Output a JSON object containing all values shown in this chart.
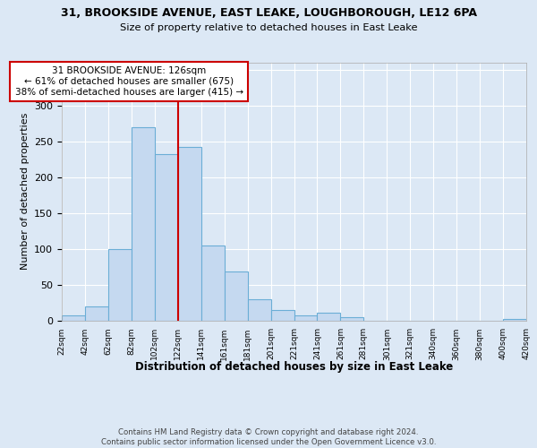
{
  "title": "31, BROOKSIDE AVENUE, EAST LEAKE, LOUGHBOROUGH, LE12 6PA",
  "subtitle": "Size of property relative to detached houses in East Leake",
  "xlabel": "Distribution of detached houses by size in East Leake",
  "ylabel": "Number of detached properties",
  "footer_line1": "Contains HM Land Registry data © Crown copyright and database right 2024.",
  "footer_line2": "Contains public sector information licensed under the Open Government Licence v3.0.",
  "bins": [
    "22sqm",
    "42sqm",
    "62sqm",
    "82sqm",
    "102sqm",
    "122sqm",
    "141sqm",
    "161sqm",
    "181sqm",
    "201sqm",
    "221sqm",
    "241sqm",
    "261sqm",
    "281sqm",
    "301sqm",
    "321sqm",
    "340sqm",
    "360sqm",
    "380sqm",
    "400sqm",
    "420sqm"
  ],
  "bar_values": [
    7,
    20,
    100,
    270,
    232,
    242,
    105,
    68,
    29,
    15,
    7,
    11,
    5,
    0,
    0,
    0,
    0,
    0,
    0,
    2
  ],
  "bar_color": "#c5d9f0",
  "bar_edge_color": "#6baed6",
  "property_bin_index": 5,
  "vline_label": "31 BROOKSIDE AVENUE: 126sqm",
  "annotation_line1": "← 61% of detached houses are smaller (675)",
  "annotation_line2": "38% of semi-detached houses are larger (415) →",
  "vline_color": "#cc0000",
  "ylim": [
    0,
    360
  ],
  "background_color": "#dce8f5",
  "grid_color": "#ffffff"
}
